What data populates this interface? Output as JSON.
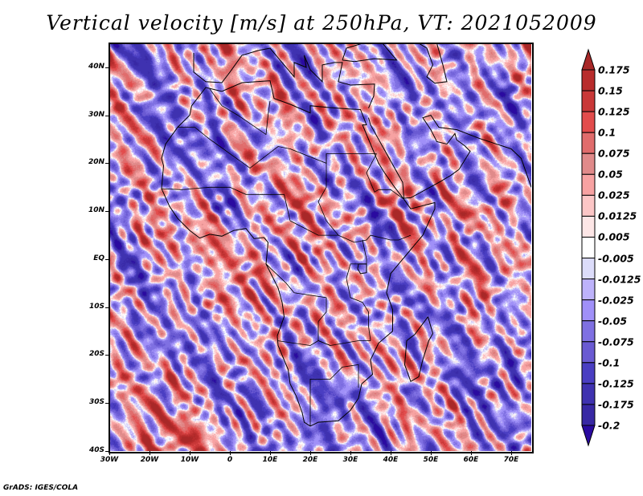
{
  "title": "Vertical velocity [m/s] at 250hPa, VT: 2021052009",
  "credit": "GrADS: IGES/COLA",
  "map": {
    "lon_range": [
      -30,
      75
    ],
    "lat_range": [
      -40,
      45
    ],
    "lat_labels": [
      {
        "lat": 40,
        "label": "40N"
      },
      {
        "lat": 30,
        "label": "30N"
      },
      {
        "lat": 20,
        "label": "20N"
      },
      {
        "lat": 10,
        "label": "10N"
      },
      {
        "lat": 0,
        "label": "EQ"
      },
      {
        "lat": -10,
        "label": "10S"
      },
      {
        "lat": -20,
        "label": "20S"
      },
      {
        "lat": -30,
        "label": "30S"
      },
      {
        "lat": -40,
        "label": "40S"
      }
    ],
    "lon_labels": [
      {
        "lon": -30,
        "label": "30W"
      },
      {
        "lon": -20,
        "label": "20W"
      },
      {
        "lon": -10,
        "label": "10W"
      },
      {
        "lon": 0,
        "label": "0"
      },
      {
        "lon": 10,
        "label": "10E"
      },
      {
        "lon": 20,
        "label": "20E"
      },
      {
        "lon": 30,
        "label": "30E"
      },
      {
        "lon": 40,
        "label": "40E"
      },
      {
        "lon": 50,
        "label": "50E"
      },
      {
        "lon": 60,
        "label": "60E"
      },
      {
        "lon": 70,
        "label": "70E"
      }
    ]
  },
  "colorbar": {
    "labels": [
      "0.175",
      "0.15",
      "0.125",
      "0.1",
      "0.075",
      "0.05",
      "0.025",
      "0.0125",
      "0.005",
      "-0.005",
      "-0.0125",
      "-0.025",
      "-0.05",
      "-0.075",
      "-0.1",
      "-0.125",
      "-0.175",
      "-0.2"
    ],
    "colors_top_to_bottom": [
      "#a82828",
      "#b82c2c",
      "#c93838",
      "#e24c4c",
      "#e06c6c",
      "#e08a8a",
      "#f7a2a2",
      "#fcc6c6",
      "#fde6e6",
      "#ffffff",
      "#dcdcfa",
      "#bdb2fa",
      "#a090f8",
      "#7f70e2",
      "#6a5ad2",
      "#4a3ec2",
      "#3f32b0",
      "#3828a4",
      "#2a0aa0"
    ]
  }
}
